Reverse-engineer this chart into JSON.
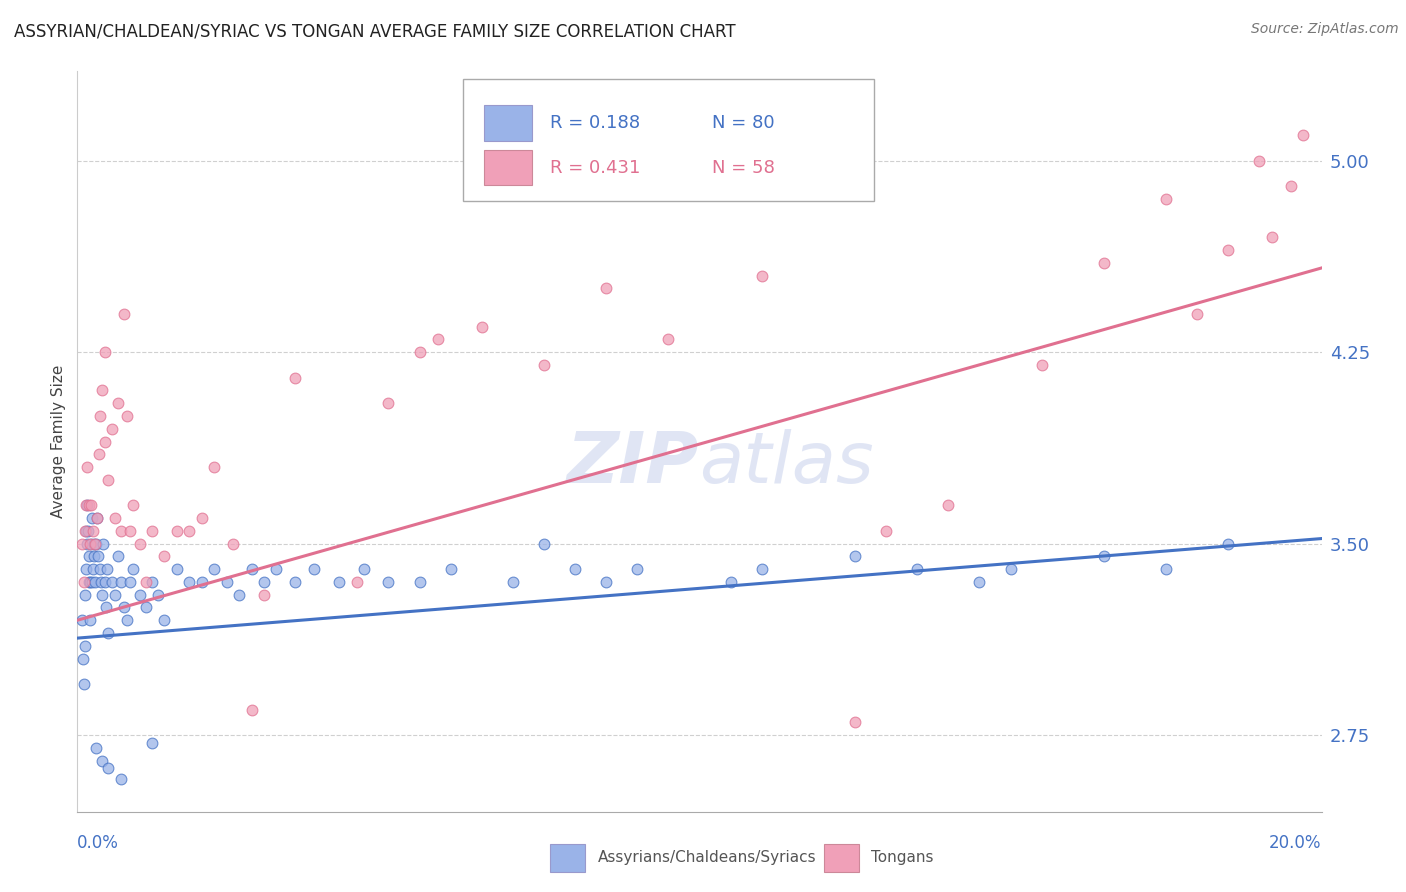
{
  "title": "ASSYRIAN/CHALDEAN/SYRIAC VS TONGAN AVERAGE FAMILY SIZE CORRELATION CHART",
  "source": "Source: ZipAtlas.com",
  "ylabel": "Average Family Size",
  "xlim": [
    0.0,
    20.0
  ],
  "ylim": [
    2.45,
    5.35
  ],
  "yticks": [
    2.75,
    3.5,
    4.25,
    5.0
  ],
  "title_fontsize": 12,
  "blue_color": "#4472c4",
  "pink_color": "#e07090",
  "blue_scatter_color": "#9ab3e8",
  "pink_scatter_color": "#f0a0b8",
  "legend_R_blue": "R = 0.188",
  "legend_N_blue": "N = 80",
  "legend_R_pink": "R = 0.431",
  "legend_N_pink": "N = 58",
  "legend_label_blue": "Assyrians/Chaldeans/Syriacs",
  "legend_label_pink": "Tongans",
  "blue_trend_x": [
    0.0,
    20.0
  ],
  "blue_trend_y": [
    3.13,
    3.52
  ],
  "pink_trend_x": [
    0.0,
    20.0
  ],
  "pink_trend_y": [
    3.2,
    4.58
  ],
  "blue_points_x": [
    0.08,
    0.09,
    0.1,
    0.12,
    0.13,
    0.14,
    0.14,
    0.15,
    0.16,
    0.17,
    0.18,
    0.19,
    0.2,
    0.21,
    0.22,
    0.23,
    0.24,
    0.25,
    0.26,
    0.27,
    0.28,
    0.3,
    0.32,
    0.34,
    0.36,
    0.38,
    0.4,
    0.42,
    0.44,
    0.46,
    0.48,
    0.5,
    0.55,
    0.6,
    0.65,
    0.7,
    0.75,
    0.8,
    0.85,
    0.9,
    1.0,
    1.1,
    1.2,
    1.3,
    1.4,
    1.6,
    1.8,
    2.0,
    2.2,
    2.4,
    2.6,
    2.8,
    3.0,
    3.2,
    3.5,
    3.8,
    4.2,
    4.6,
    5.0,
    5.5,
    6.0,
    7.0,
    7.5,
    8.0,
    8.5,
    9.0,
    10.5,
    11.0,
    12.5,
    13.5,
    14.5,
    15.0,
    16.5,
    17.5,
    18.5,
    0.3,
    0.4,
    0.5,
    0.7,
    1.2
  ],
  "blue_points_y": [
    3.2,
    3.05,
    2.95,
    3.1,
    3.3,
    3.4,
    3.55,
    3.5,
    3.65,
    3.55,
    3.45,
    3.35,
    3.2,
    3.35,
    3.5,
    3.6,
    3.35,
    3.4,
    3.5,
    3.45,
    3.35,
    3.5,
    3.6,
    3.45,
    3.4,
    3.35,
    3.3,
    3.5,
    3.35,
    3.25,
    3.4,
    3.15,
    3.35,
    3.3,
    3.45,
    3.35,
    3.25,
    3.2,
    3.35,
    3.4,
    3.3,
    3.25,
    3.35,
    3.3,
    3.2,
    3.4,
    3.35,
    3.35,
    3.4,
    3.35,
    3.3,
    3.4,
    3.35,
    3.4,
    3.35,
    3.4,
    3.35,
    3.4,
    3.35,
    3.35,
    3.4,
    3.35,
    3.5,
    3.4,
    3.35,
    3.4,
    3.35,
    3.4,
    3.45,
    3.4,
    3.35,
    3.4,
    3.45,
    3.4,
    3.5,
    2.7,
    2.65,
    2.62,
    2.58,
    2.72
  ],
  "pink_points_x": [
    0.08,
    0.1,
    0.12,
    0.14,
    0.16,
    0.18,
    0.2,
    0.22,
    0.25,
    0.28,
    0.32,
    0.36,
    0.4,
    0.45,
    0.5,
    0.55,
    0.6,
    0.65,
    0.7,
    0.75,
    0.8,
    0.85,
    0.9,
    1.0,
    1.1,
    1.2,
    1.4,
    1.6,
    1.8,
    2.0,
    2.2,
    2.5,
    3.0,
    3.5,
    4.5,
    5.0,
    5.5,
    6.5,
    7.5,
    8.5,
    9.5,
    11.0,
    13.0,
    14.0,
    15.5,
    16.5,
    17.5,
    18.0,
    18.5,
    19.0,
    19.2,
    19.5,
    19.7,
    5.8,
    0.35,
    0.45,
    2.8,
    12.5
  ],
  "pink_points_y": [
    3.5,
    3.35,
    3.55,
    3.65,
    3.8,
    3.65,
    3.5,
    3.65,
    3.55,
    3.5,
    3.6,
    4.0,
    4.1,
    3.9,
    3.75,
    3.95,
    3.6,
    4.05,
    3.55,
    4.4,
    4.0,
    3.55,
    3.65,
    3.5,
    3.35,
    3.55,
    3.45,
    3.55,
    3.55,
    3.6,
    3.8,
    3.5,
    3.3,
    4.15,
    3.35,
    4.05,
    4.25,
    4.35,
    4.2,
    4.5,
    4.3,
    4.55,
    3.55,
    3.65,
    4.2,
    4.6,
    4.85,
    4.4,
    4.65,
    5.0,
    4.7,
    4.9,
    5.1,
    4.3,
    3.85,
    4.25,
    2.85,
    2.8
  ]
}
